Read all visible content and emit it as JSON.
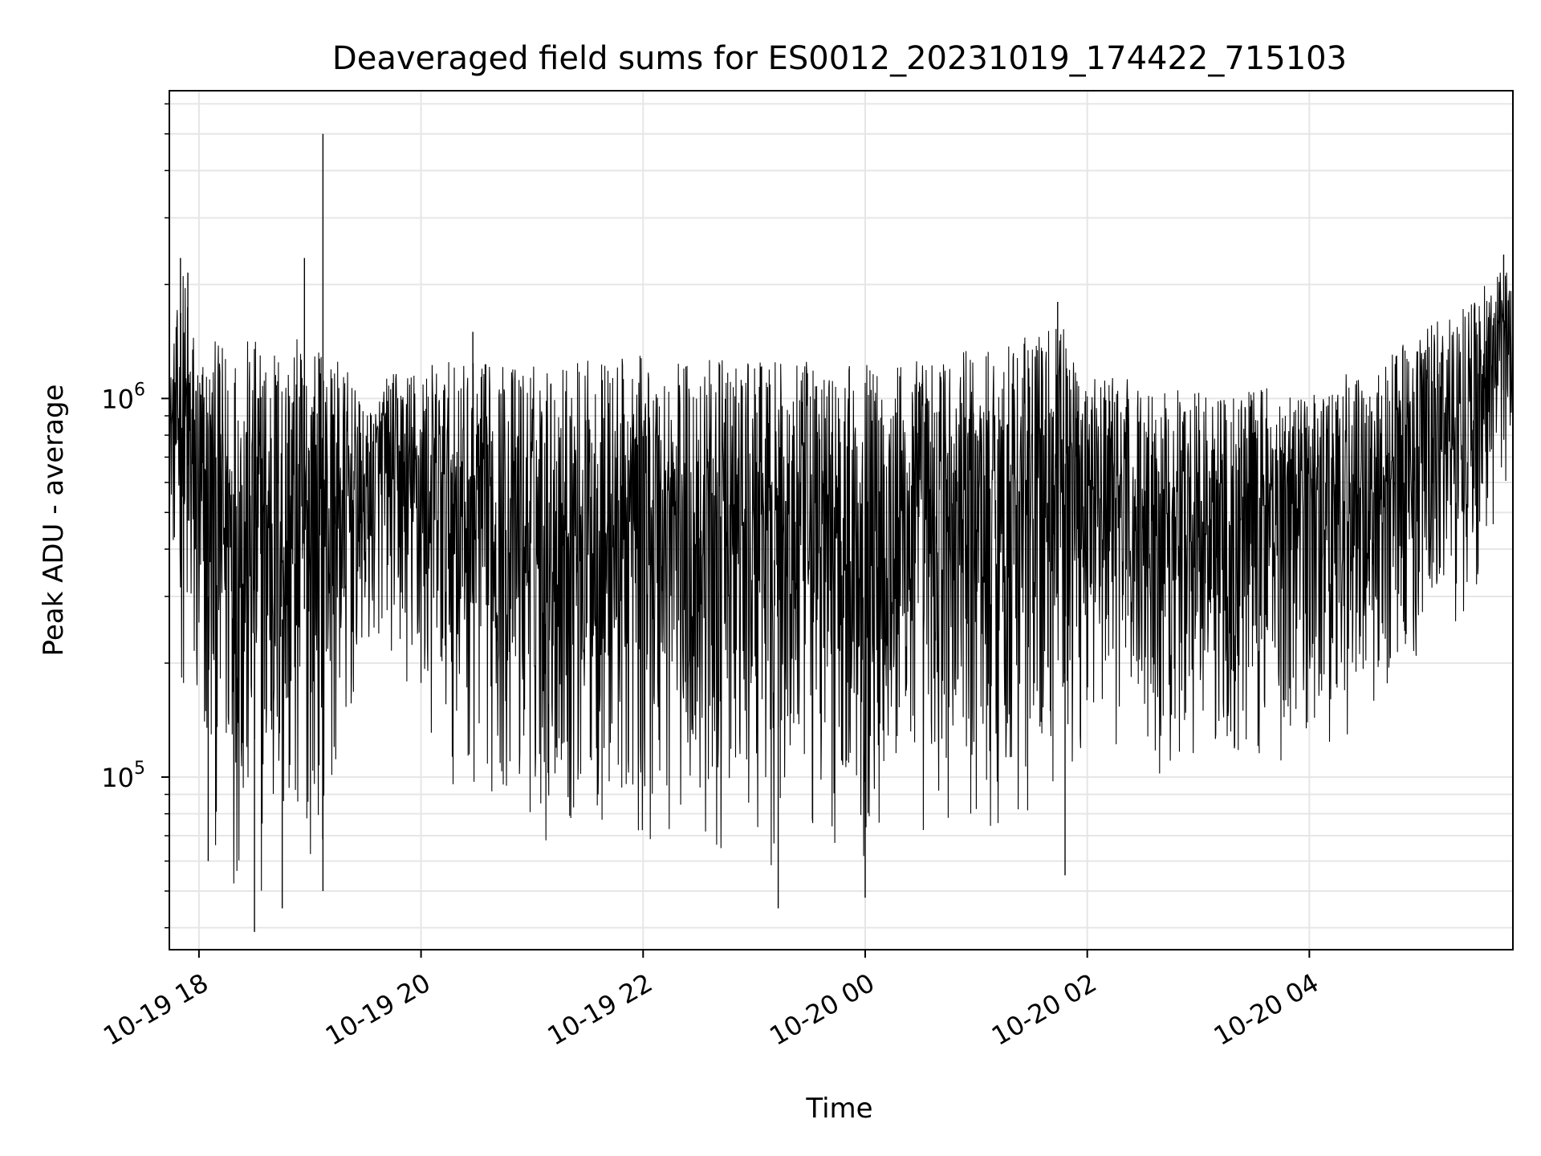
{
  "chart_data": {
    "type": "line",
    "title": "Deaveraged field sums for ES0012_20231019_174422_715103",
    "xlabel": "Time",
    "ylabel": "Peak ADU - average",
    "yscale": "log",
    "ylim": [
      35000,
      6500000
    ],
    "xlim": [
      "2023-10-19 17:44",
      "2023-10-20 05:50"
    ],
    "x_ticks": [
      {
        "value": "2023-10-19 18:00",
        "label": "10-19 18"
      },
      {
        "value": "2023-10-19 20:00",
        "label": "10-19 20"
      },
      {
        "value": "2023-10-19 22:00",
        "label": "10-19 22"
      },
      {
        "value": "2023-10-20 00:00",
        "label": "10-20 00"
      },
      {
        "value": "2023-10-20 02:00",
        "label": "10-20 02"
      },
      {
        "value": "2023-10-20 04:00",
        "label": "10-20 04"
      }
    ],
    "y_ticks": [
      {
        "value": 100000,
        "base": "10",
        "exp": "5"
      },
      {
        "value": 1000000,
        "base": "10",
        "exp": "6"
      }
    ],
    "grid": true,
    "line_color": "#000000",
    "envelope": [
      {
        "x": "2023-10-19 17:44",
        "low": 500000,
        "high": 1100000
      },
      {
        "x": "2023-10-19 17:51",
        "low": 150000,
        "high": 2300000
      },
      {
        "x": "2023-10-19 18:00",
        "low": 70000,
        "high": 1400000
      },
      {
        "x": "2023-10-19 18:30",
        "low": 40000,
        "high": 1450000
      },
      {
        "x": "2023-10-19 19:00",
        "low": 55000,
        "high": 1450000
      },
      {
        "x": "2023-10-19 19:20",
        "low": 100000,
        "high": 1200000
      },
      {
        "x": "2023-10-19 19:30",
        "low": 190000,
        "high": 900000
      },
      {
        "x": "2023-10-19 19:40",
        "low": 220000,
        "high": 1150000
      },
      {
        "x": "2023-10-19 20:00",
        "low": 110000,
        "high": 1250000
      },
      {
        "x": "2023-10-19 21:00",
        "low": 65000,
        "high": 1250000
      },
      {
        "x": "2023-10-19 22:00",
        "low": 60000,
        "high": 1300000
      },
      {
        "x": "2023-10-19 23:00",
        "low": 55000,
        "high": 1250000
      },
      {
        "x": "2023-10-20 00:00",
        "low": 60000,
        "high": 1250000
      },
      {
        "x": "2023-10-20 01:00",
        "low": 60000,
        "high": 1350000
      },
      {
        "x": "2023-10-20 01:45",
        "low": 80000,
        "high": 1600000
      },
      {
        "x": "2023-10-20 02:00",
        "low": 130000,
        "high": 1200000
      },
      {
        "x": "2023-10-20 02:30",
        "low": 100000,
        "high": 1100000
      },
      {
        "x": "2023-10-20 03:00",
        "low": 105000,
        "high": 1050000
      },
      {
        "x": "2023-10-20 04:00",
        "low": 105000,
        "high": 1100000
      },
      {
        "x": "2023-10-20 04:30",
        "low": 120000,
        "high": 1200000
      },
      {
        "x": "2023-10-20 05:00",
        "low": 180000,
        "high": 1500000
      },
      {
        "x": "2023-10-20 05:30",
        "low": 300000,
        "high": 1900000
      },
      {
        "x": "2023-10-20 05:50",
        "low": 600000,
        "high": 2300000
      }
    ],
    "spikes": [
      {
        "x": "2023-10-19 17:50",
        "value": 2350000
      },
      {
        "x": "2023-10-19 17:54",
        "value": 2150000
      },
      {
        "x": "2023-10-19 18:05",
        "value": 60000
      },
      {
        "x": "2023-10-19 18:30",
        "value": 39000
      },
      {
        "x": "2023-10-19 18:45",
        "value": 45000
      },
      {
        "x": "2023-10-19 18:57",
        "value": 2350000
      },
      {
        "x": "2023-10-19 19:07",
        "value": 5000000
      },
      {
        "x": "2023-10-19 19:07",
        "value": 50000
      },
      {
        "x": "2023-10-19 20:28",
        "value": 1500000
      },
      {
        "x": "2023-10-19 23:13",
        "value": 45000
      },
      {
        "x": "2023-10-20 00:00",
        "value": 48000
      },
      {
        "x": "2023-10-20 01:44",
        "value": 1800000
      },
      {
        "x": "2023-10-20 01:48",
        "value": 55000
      },
      {
        "x": "2023-10-20 05:45",
        "value": 2400000
      }
    ]
  }
}
